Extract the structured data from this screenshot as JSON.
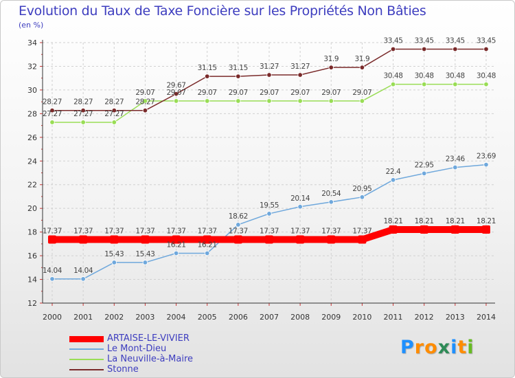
{
  "title": "Evolution du Taux de Taxe Foncière sur les Propriétés Non Bâties",
  "unit_label": "(en %)",
  "logo": {
    "letters": [
      "P",
      "r",
      "o",
      "x",
      "i",
      "t",
      "i"
    ],
    "colors": [
      "#1e90ff",
      "#ff8c00",
      "#ff8c00",
      "#2e8b57",
      "#1e90ff",
      "#ff8c00",
      "#66bb22"
    ]
  },
  "chart_data": {
    "type": "line",
    "x": [
      "2000",
      "2001",
      "2002",
      "2003",
      "2004",
      "2005",
      "2006",
      "2007",
      "2008",
      "2009",
      "2010",
      "2011",
      "2012",
      "2013",
      "2014"
    ],
    "ylim": [
      12,
      34
    ],
    "yticks": [
      12,
      14,
      16,
      18,
      20,
      22,
      24,
      26,
      28,
      30,
      32,
      34
    ],
    "grid": true,
    "legend_position": "bottom-left",
    "series": [
      {
        "name": "ARTAISE-LE-VIVIER",
        "color": "#ff0000",
        "values": [
          17.37,
          17.37,
          17.37,
          17.37,
          17.37,
          17.37,
          17.37,
          17.37,
          17.37,
          17.37,
          17.37,
          18.21,
          18.21,
          18.21,
          18.21
        ],
        "labels": [
          "17.37",
          "17.37",
          "17.37",
          "17.37",
          "17.37",
          "17.37",
          "17.37",
          "17.37",
          "17.37",
          "17.37",
          "17.37",
          "18.21",
          "18.21",
          "18.21",
          "18.21"
        ]
      },
      {
        "name": "Le Mont-Dieu",
        "color": "#6fa8dc",
        "values": [
          14.04,
          14.04,
          15.43,
          15.43,
          16.21,
          16.21,
          18.62,
          19.55,
          20.14,
          20.54,
          20.95,
          22.4,
          22.95,
          23.46,
          23.69
        ],
        "labels": [
          "14.04",
          "14.04",
          "15.43",
          "15.43",
          "16.21",
          "16.21",
          "18.62",
          "19.55",
          "20.14",
          "20.54",
          "20.95",
          "22.4",
          "22.95",
          "23.46",
          "23.69"
        ]
      },
      {
        "name": "La Neuville-à-Maire",
        "color": "#99dd55",
        "values": [
          27.27,
          27.27,
          27.27,
          29.07,
          29.07,
          29.07,
          29.07,
          29.07,
          29.07,
          29.07,
          29.07,
          30.48,
          30.48,
          30.48,
          30.48
        ],
        "labels": [
          "27.27",
          "27.27",
          "27.27",
          "29.07",
          "29.07",
          "29.07",
          "29.07",
          "29.07",
          "29.07",
          "29.07",
          "29.07",
          "30.48",
          "30.48",
          "30.48",
          "30.48"
        ]
      },
      {
        "name": "Stonne",
        "color": "#7a2a2a",
        "values": [
          28.27,
          28.27,
          28.27,
          28.27,
          29.67,
          31.15,
          31.15,
          31.27,
          31.27,
          31.9,
          31.9,
          33.45,
          33.45,
          33.45,
          33.45
        ],
        "labels": [
          "28.27",
          "28.27",
          "28.27",
          "28.27",
          "29.67",
          "31.15",
          "31.15",
          "31.27",
          "31.27",
          "31.9",
          "31.9",
          "33.45",
          "33.45",
          "33.45",
          "33.45"
        ]
      }
    ]
  }
}
